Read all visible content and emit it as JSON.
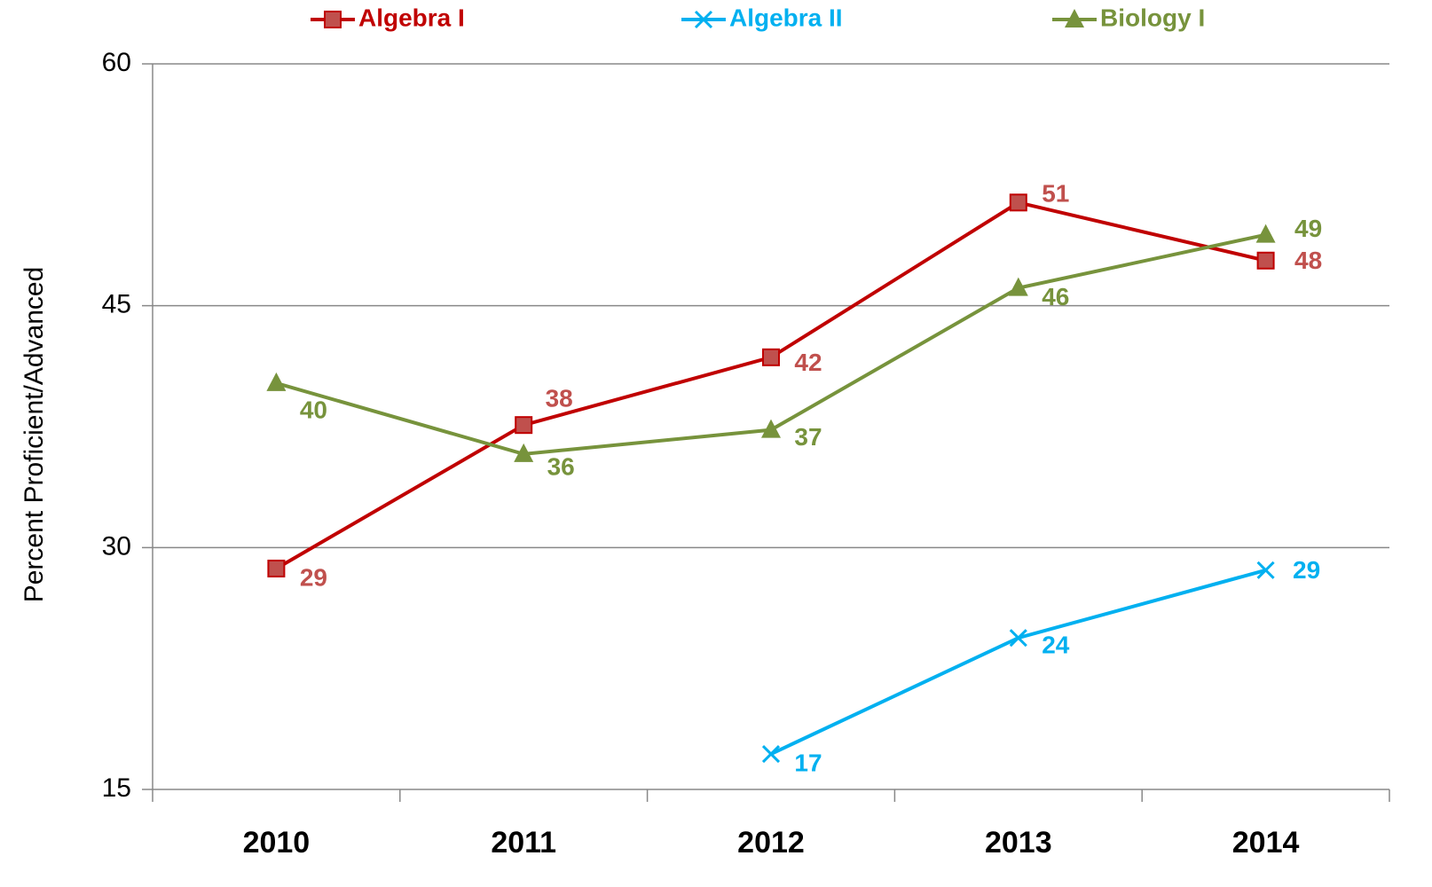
{
  "chart_data": {
    "type": "line",
    "y_axis_label": "Percent  Proficient/Advanced",
    "categories": [
      "2010",
      "2011",
      "2012",
      "2013",
      "2014"
    ],
    "series": [
      {
        "name": "Algebra I",
        "color": "#c00000",
        "marker": "square",
        "values": [
          28.7,
          37.6,
          41.8,
          51.4,
          47.8
        ],
        "value_labels": [
          "29",
          "38",
          "42",
          "51",
          "48"
        ]
      },
      {
        "name": "Algebra II",
        "color": "#00b0f0",
        "marker": "x",
        "values": [
          null,
          null,
          17.2,
          24.4,
          28.6
        ],
        "value_labels": [
          null,
          null,
          "17",
          "24",
          "29"
        ]
      },
      {
        "name": "Biology I",
        "color": "#77933c",
        "marker": "triangle",
        "values": [
          40.2,
          35.8,
          37.3,
          46.1,
          49.4
        ],
        "value_labels": [
          "40",
          "36",
          "37",
          "46",
          "49"
        ]
      }
    ],
    "ylim": [
      15,
      60
    ],
    "yticks": [
      15,
      30,
      45,
      60
    ],
    "grid": true,
    "legend": "top"
  }
}
